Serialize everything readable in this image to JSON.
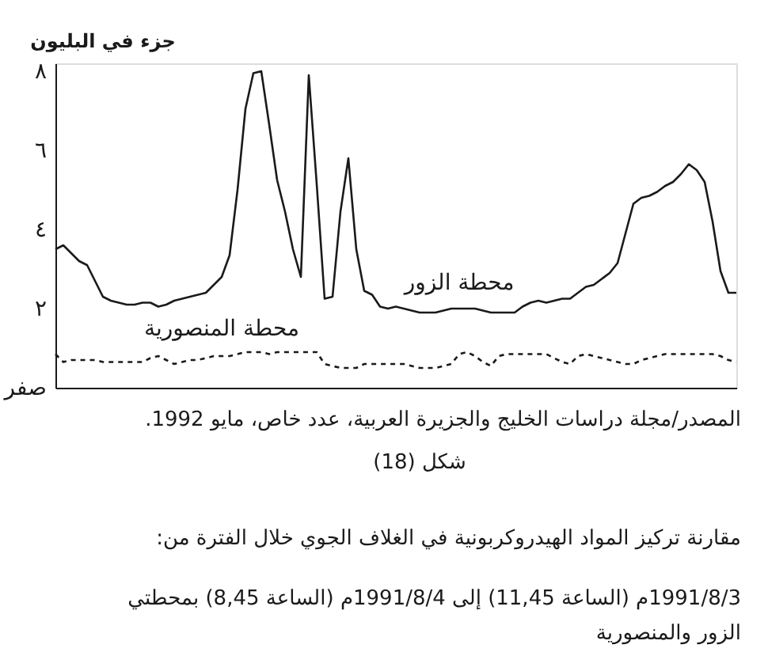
{
  "chart_data": {
    "type": "line",
    "ylabel": "جزء في البليون",
    "categories": [
      null,
      null,
      null,
      null,
      null,
      null,
      null,
      null,
      null,
      null,
      null,
      null,
      null,
      null,
      null,
      null,
      null,
      null,
      null,
      null,
      null,
      null,
      null,
      null,
      null,
      null,
      null,
      null,
      null,
      null,
      null,
      null,
      null,
      null,
      null,
      null,
      null,
      null,
      null,
      null,
      null,
      null,
      null,
      null,
      null,
      null,
      null,
      null,
      null,
      null,
      null,
      null,
      null,
      null,
      null,
      null,
      null,
      null,
      null,
      null,
      null,
      null,
      null,
      null,
      null,
      null,
      null,
      null,
      null,
      null,
      null,
      null,
      null,
      null,
      null,
      null,
      null,
      null,
      null,
      null,
      null,
      null,
      null,
      null,
      null,
      null,
      null
    ],
    "series": [
      {
        "name": "محطة الزور",
        "color": "#1a1a1a",
        "line_style": "solid",
        "values": [
          3.5,
          3.6,
          3.4,
          3.2,
          3.1,
          2.7,
          2.3,
          2.2,
          2.15,
          2.1,
          2.1,
          2.15,
          2.15,
          2.05,
          2.1,
          2.2,
          2.25,
          2.3,
          2.35,
          2.4,
          2.6,
          2.8,
          3.35,
          5.0,
          7.05,
          7.95,
          8.0,
          6.65,
          5.25,
          4.45,
          3.5,
          2.8,
          7.9,
          5.15,
          2.25,
          2.3,
          4.45,
          5.8,
          3.5,
          2.45,
          2.35,
          2.05,
          2.0,
          2.05,
          2.0,
          1.95,
          1.9,
          1.9,
          1.9,
          1.95,
          2.0,
          2.0,
          2.0,
          2.0,
          1.95,
          1.9,
          1.9,
          1.9,
          1.9,
          2.05,
          2.15,
          2.2,
          2.15,
          2.2,
          2.25,
          2.25,
          2.4,
          2.55,
          2.6,
          2.75,
          2.9,
          3.15,
          3.9,
          4.65,
          4.8,
          4.85,
          4.95,
          5.1,
          5.2,
          5.4,
          5.65,
          5.5,
          5.2,
          4.2,
          2.95,
          2.4,
          2.4
        ]
      },
      {
        "name": "محطة المنصورية",
        "color": "#1a1a1a",
        "line_style": "dashed",
        "values": [
          0.85,
          0.65,
          0.7,
          0.7,
          0.7,
          0.7,
          0.65,
          0.65,
          0.65,
          0.65,
          0.65,
          0.65,
          0.75,
          0.8,
          0.7,
          0.6,
          0.65,
          0.7,
          0.7,
          0.75,
          0.8,
          0.8,
          0.8,
          0.85,
          0.9,
          0.9,
          0.9,
          0.85,
          0.9,
          0.9,
          0.9,
          0.9,
          0.9,
          0.9,
          0.6,
          0.55,
          0.5,
          0.5,
          0.5,
          0.6,
          0.6,
          0.6,
          0.6,
          0.6,
          0.6,
          0.55,
          0.5,
          0.5,
          0.5,
          0.55,
          0.6,
          0.85,
          0.9,
          0.8,
          0.65,
          0.55,
          0.8,
          0.85,
          0.85,
          0.85,
          0.85,
          0.85,
          0.85,
          0.75,
          0.65,
          0.6,
          0.8,
          0.85,
          0.8,
          0.75,
          0.7,
          0.65,
          0.6,
          0.6,
          0.7,
          0.75,
          0.8,
          0.85,
          0.85,
          0.85,
          0.85,
          0.85,
          0.85,
          0.85,
          0.8,
          0.7,
          0.65
        ]
      }
    ],
    "ylim": [
      0,
      8.2
    ],
    "yticks": [
      {
        "value": 0,
        "label": "صفر"
      },
      {
        "value": 2,
        "label": "٢"
      },
      {
        "value": 4,
        "label": "٤"
      },
      {
        "value": 6,
        "label": "٦"
      },
      {
        "value": 8,
        "label": "٨"
      }
    ],
    "tick_labels": "y",
    "grid": false,
    "marker": "none",
    "annotations": [
      "المصدر/مجلة دراسات الخليج والجزيرة العربية، عدد خاص، مايو 1992.",
      "شكل (18)",
      "مقارنة تركيز المواد الهيدروكربونية في الغلاف الجوي خلال الفترة من:",
      "1991/8/3م (الساعة 11,45) إلى 1991/8/4م (الساعة 8,45) بمحطتي الزور والمنصورية"
    ]
  }
}
